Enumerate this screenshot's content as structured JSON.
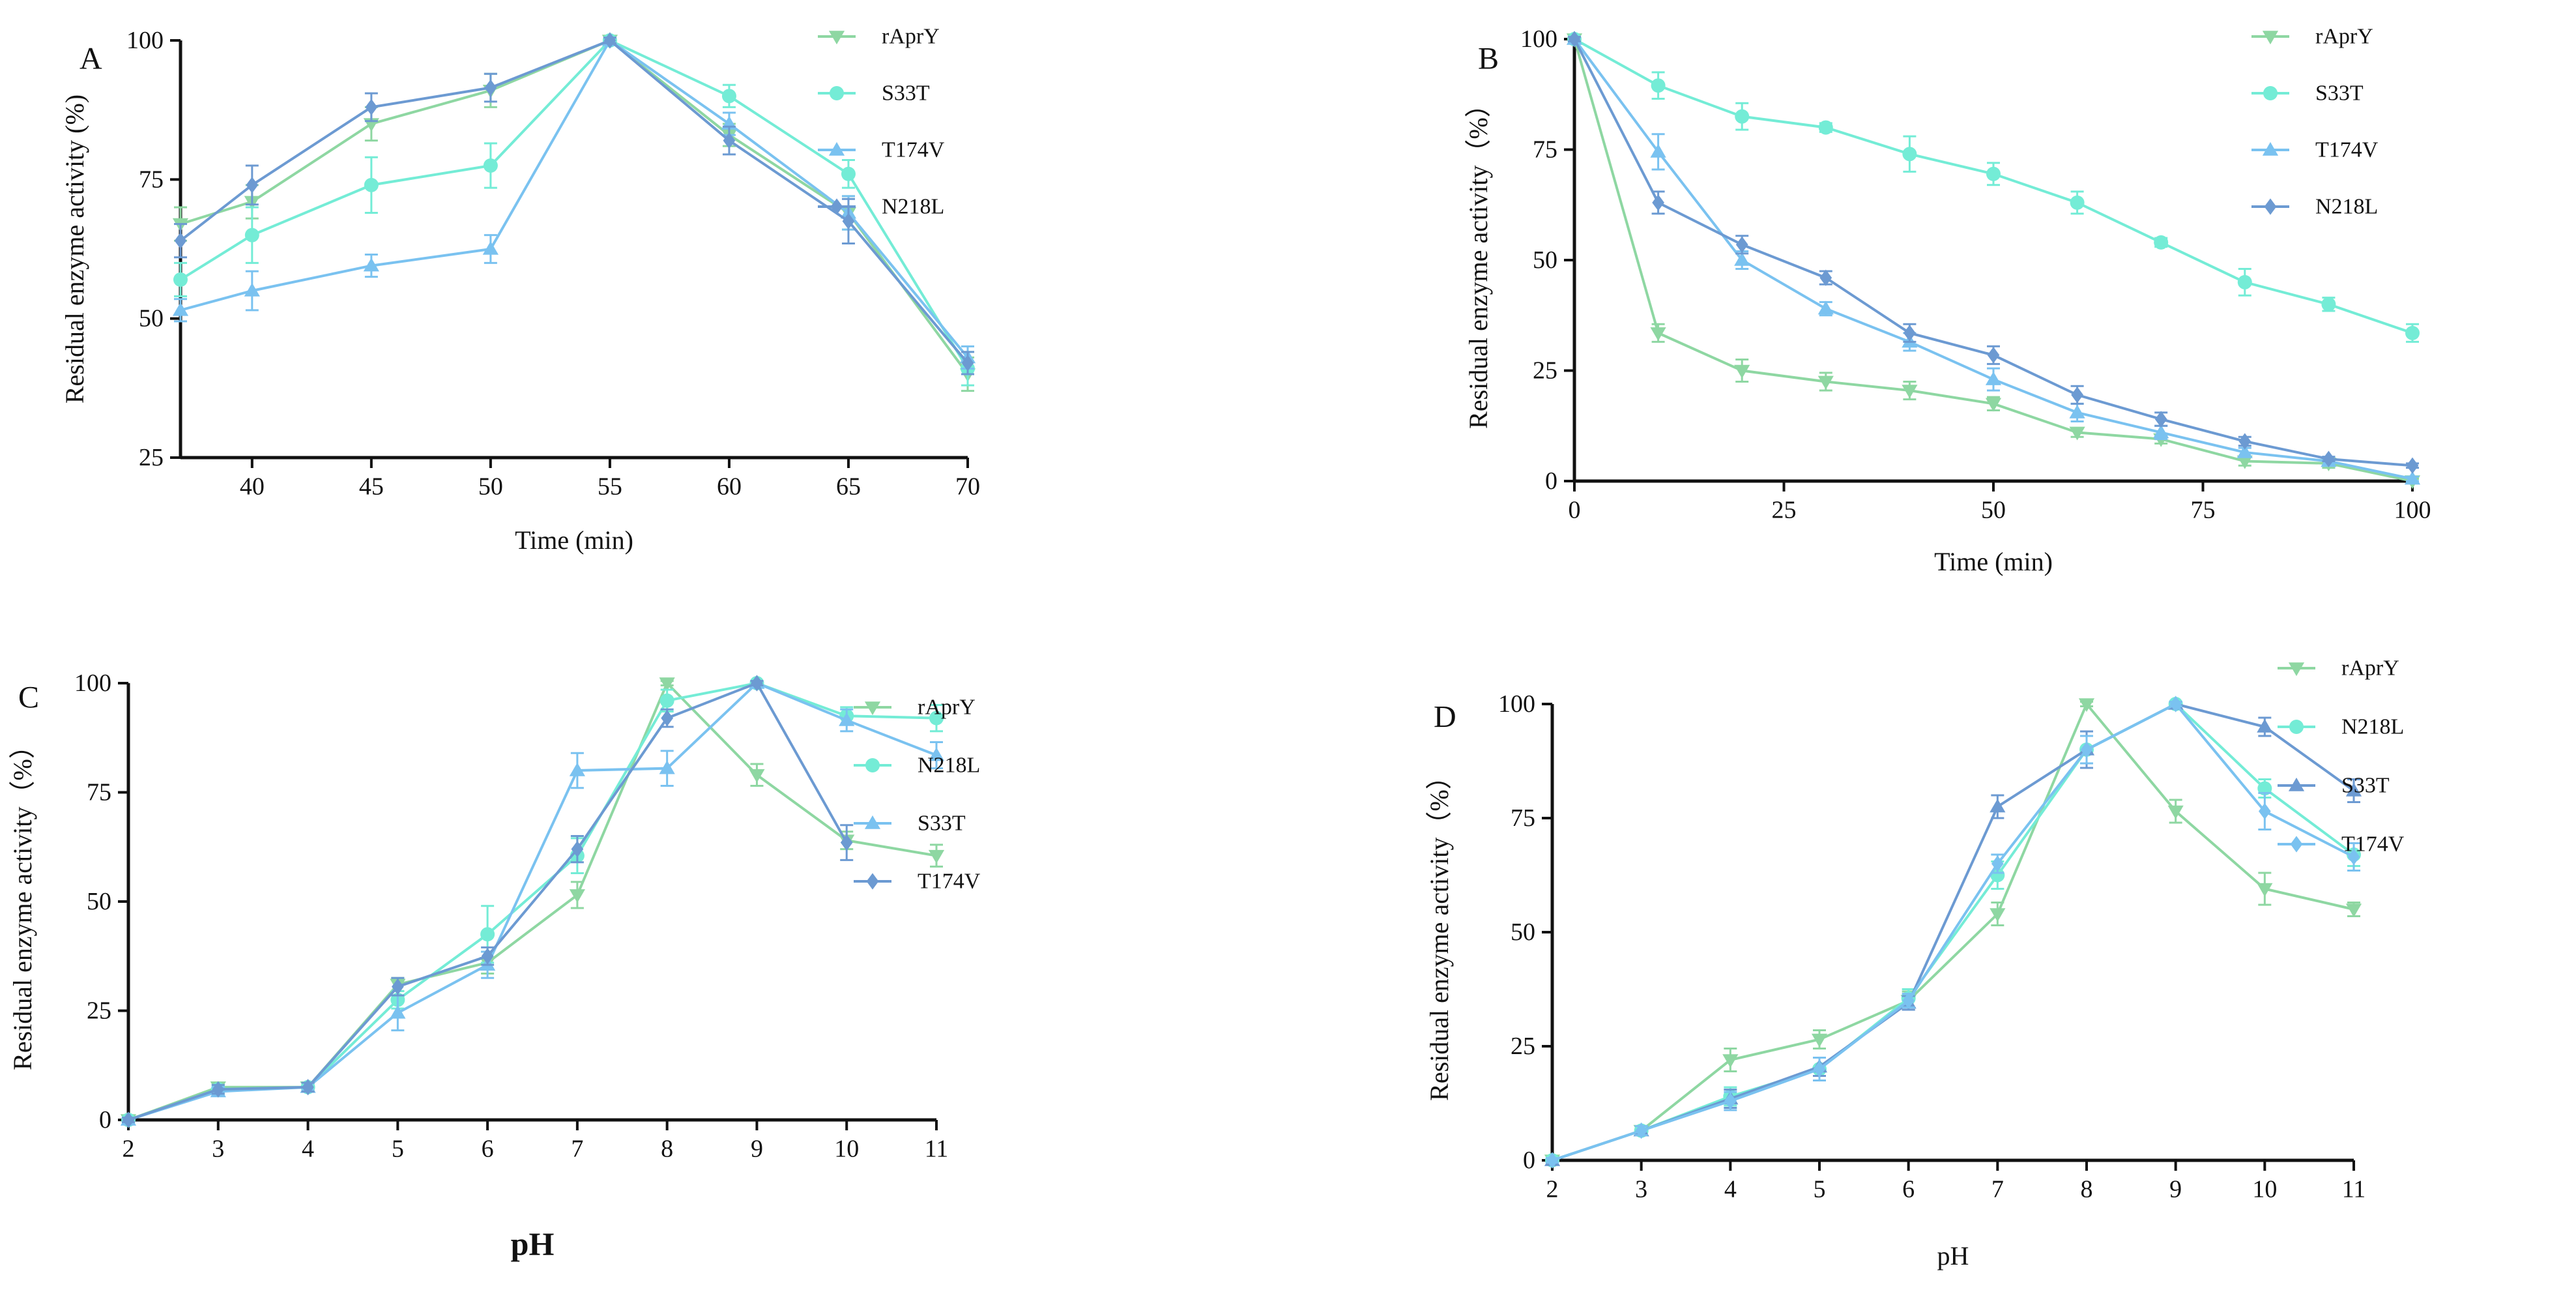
{
  "colors": {
    "rAprY": "#8ed7a2",
    "S33T": "#74ecd6",
    "T174V": "#7ac2f0",
    "N218L": "#6c9ad2",
    "axis": "#111111"
  },
  "chart_data": [
    {
      "panel": "A",
      "type": "line",
      "title": "",
      "xlabel": "Time (min)",
      "ylabel": "Residual enzyme activity (%)",
      "xlim": [
        37,
        70
      ],
      "ylim": [
        25,
        100
      ],
      "xticks": [
        40,
        45,
        50,
        55,
        60,
        65,
        70
      ],
      "yticks": [
        25,
        50,
        75,
        100
      ],
      "grid": false,
      "legend_position": "top-right",
      "series": [
        {
          "name": "rAprY",
          "key": "rAprY",
          "marker": "triangle-down",
          "x": [
            37,
            40,
            45,
            50,
            55,
            60,
            65,
            70
          ],
          "values": [
            67,
            71,
            85,
            91,
            100,
            83,
            69,
            40
          ],
          "errors": [
            3,
            3,
            3,
            3,
            0.5,
            2,
            3,
            3
          ]
        },
        {
          "name": "S33T",
          "key": "S33T",
          "marker": "circle",
          "x": [
            37,
            40,
            45,
            50,
            55,
            60,
            65,
            70
          ],
          "values": [
            57,
            65,
            74,
            77.5,
            100,
            90,
            76,
            41
          ],
          "errors": [
            3,
            5,
            5,
            4,
            0.5,
            2,
            2.5,
            3
          ]
        },
        {
          "name": "T174V",
          "key": "T174V",
          "marker": "triangle-up",
          "x": [
            37,
            40,
            45,
            50,
            55,
            60,
            65,
            70
          ],
          "values": [
            51.5,
            55,
            59.5,
            62.5,
            100,
            85,
            69,
            43
          ],
          "errors": [
            2,
            3.5,
            2,
            2.5,
            0.5,
            2,
            3,
            2
          ]
        },
        {
          "name": "N218L",
          "key": "N218L",
          "marker": "diamond",
          "x": [
            37,
            40,
            45,
            50,
            55,
            60,
            65,
            70
          ],
          "values": [
            64,
            74,
            88,
            91.5,
            100,
            82,
            67.5,
            42
          ],
          "errors": [
            3,
            3.5,
            2.5,
            2.5,
            0.5,
            2.5,
            4,
            2
          ]
        }
      ]
    },
    {
      "panel": "B",
      "type": "line",
      "title": "",
      "xlabel": "Time (min)",
      "ylabel": "Residual enzyme activity（%）",
      "xlim": [
        0,
        100
      ],
      "ylim": [
        0,
        100
      ],
      "xticks": [
        0,
        25,
        50,
        75,
        100
      ],
      "yticks": [
        0,
        25,
        50,
        75,
        100
      ],
      "grid": false,
      "legend_position": "top-right",
      "series": [
        {
          "name": "rAprY",
          "key": "rAprY",
          "marker": "triangle-down",
          "x": [
            0,
            10,
            20,
            30,
            40,
            50,
            60,
            70,
            80,
            90,
            100
          ],
          "values": [
            100,
            33.5,
            25,
            22.5,
            20.5,
            17.5,
            11,
            9.5,
            4.5,
            4,
            0
          ],
          "errors": [
            0.5,
            2,
            2.5,
            2,
            2,
            1.5,
            1,
            1,
            1,
            1,
            0.5
          ]
        },
        {
          "name": "S33T",
          "key": "S33T",
          "marker": "circle",
          "x": [
            0,
            10,
            20,
            30,
            40,
            50,
            60,
            70,
            80,
            90,
            100
          ],
          "values": [
            100,
            89.5,
            82.5,
            80,
            74,
            69.5,
            63,
            54,
            45,
            40,
            33.5
          ],
          "errors": [
            0.5,
            3,
            3,
            1,
            4,
            2.5,
            2.5,
            1,
            3,
            1.5,
            2
          ]
        },
        {
          "name": "T174V",
          "key": "T174V",
          "marker": "triangle-up",
          "x": [
            0,
            10,
            20,
            30,
            40,
            50,
            60,
            70,
            80,
            90,
            100
          ],
          "values": [
            100,
            74.5,
            50,
            39,
            31.5,
            23,
            15.5,
            11,
            6.5,
            4.5,
            0.5
          ],
          "errors": [
            0.5,
            4,
            2,
            1.5,
            2,
            2.5,
            2,
            1.5,
            1,
            1,
            0.5
          ]
        },
        {
          "name": "N218L",
          "key": "N218L",
          "marker": "diamond",
          "x": [
            0,
            10,
            20,
            30,
            40,
            50,
            60,
            70,
            80,
            90,
            100
          ],
          "values": [
            100,
            63,
            53.5,
            46,
            33.5,
            28.5,
            19.5,
            14,
            9,
            5,
            3.5
          ],
          "errors": [
            0.5,
            2.5,
            2,
            1.5,
            2,
            2,
            2,
            1.5,
            1,
            0.5,
            0.5
          ]
        }
      ]
    },
    {
      "panel": "C",
      "type": "line",
      "title": "",
      "xlabel": "pH",
      "xlabel_bold": true,
      "ylabel": "Residual enzyme activity（%）",
      "xlim": [
        2,
        11
      ],
      "ylim": [
        0,
        100
      ],
      "xticks": [
        2,
        3,
        4,
        5,
        6,
        7,
        8,
        9,
        10,
        11
      ],
      "yticks": [
        0,
        25,
        50,
        75,
        100
      ],
      "grid": false,
      "legend_position": "top-right",
      "series": [
        {
          "name": "rAprY",
          "key": "rAprY",
          "marker": "triangle-down",
          "x": [
            2,
            3,
            4,
            5,
            6,
            7,
            8,
            9,
            10,
            11
          ],
          "values": [
            0,
            7.5,
            7.5,
            31,
            36,
            51.5,
            100,
            79,
            64,
            60.5
          ],
          "errors": [
            0.5,
            1,
            1,
            1.5,
            2.5,
            3,
            0.5,
            2.5,
            2,
            2.5
          ]
        },
        {
          "name": "N218L",
          "key": "S33T",
          "marker": "circle",
          "x": [
            2,
            3,
            4,
            5,
            6,
            7,
            8,
            9,
            10,
            11
          ],
          "values": [
            0,
            7,
            7.5,
            27.5,
            42.5,
            60.5,
            96,
            100,
            92.5,
            92
          ],
          "errors": [
            0.5,
            1,
            1,
            2,
            6.5,
            4,
            2.5,
            0.5,
            2,
            3
          ]
        },
        {
          "name": "S33T",
          "key": "T174V",
          "marker": "triangle-up",
          "x": [
            2,
            3,
            4,
            5,
            6,
            7,
            8,
            9,
            10,
            11
          ],
          "values": [
            0,
            6.5,
            7.5,
            24.5,
            35.5,
            80,
            80.5,
            100,
            91.5,
            83.5
          ],
          "errors": [
            0.5,
            1,
            1,
            4,
            3,
            4,
            4,
            0.5,
            2.5,
            3
          ]
        },
        {
          "name": "T174V",
          "key": "N218L",
          "marker": "diamond",
          "x": [
            2,
            3,
            4,
            5,
            6,
            7,
            8,
            9,
            10,
            11
          ],
          "values": [
            0,
            7,
            7.5,
            30.5,
            37.5,
            62,
            92,
            100,
            63.5,
            null
          ],
          "errors": [
            0.5,
            1,
            1,
            2,
            2,
            3,
            2,
            0.5,
            4,
            null
          ]
        }
      ]
    },
    {
      "panel": "D",
      "type": "line",
      "title": "",
      "xlabel": "pH",
      "ylabel": "Residual enzyme activity（%）",
      "xlim": [
        2,
        11
      ],
      "ylim": [
        0,
        100
      ],
      "xticks": [
        2,
        3,
        4,
        5,
        6,
        7,
        8,
        9,
        10,
        11
      ],
      "yticks": [
        0,
        25,
        50,
        75,
        100
      ],
      "grid": false,
      "legend_position": "top-right",
      "series": [
        {
          "name": "rAprY",
          "key": "rAprY",
          "marker": "triangle-down",
          "x": [
            2,
            3,
            4,
            5,
            6,
            7,
            8,
            9,
            10,
            11
          ],
          "values": [
            0,
            6.5,
            22,
            26.5,
            35,
            54,
            100,
            76.5,
            59.5,
            55
          ],
          "errors": [
            0.5,
            1,
            2.5,
            2,
            2,
            2.5,
            0.5,
            2.5,
            3.5,
            1.5
          ]
        },
        {
          "name": "N218L",
          "key": "S33T",
          "marker": "circle",
          "x": [
            2,
            3,
            4,
            5,
            6,
            7,
            8,
            9,
            10,
            11
          ],
          "values": [
            0,
            6.5,
            14,
            20,
            35.5,
            62.5,
            90,
            100,
            81.5,
            67
          ],
          "errors": [
            0.5,
            1,
            2,
            2.5,
            2,
            3,
            3,
            0.5,
            2,
            2.5
          ]
        },
        {
          "name": "S33T",
          "key": "N218L",
          "marker": "triangle-up",
          "x": [
            2,
            3,
            4,
            5,
            6,
            7,
            8,
            9,
            10,
            11
          ],
          "values": [
            0,
            6.5,
            13.5,
            20.5,
            34.5,
            77.5,
            90,
            100,
            95,
            81
          ],
          "errors": [
            0.5,
            1,
            2,
            2,
            1.5,
            2.5,
            4,
            0.5,
            2,
            2.5
          ]
        },
        {
          "name": "T174V",
          "key": "T174V",
          "marker": "diamond",
          "x": [
            2,
            3,
            4,
            5,
            6,
            7,
            8,
            9,
            10,
            11
          ],
          "values": [
            0,
            6.5,
            13,
            20,
            35,
            65,
            90,
            100,
            76.5,
            66.5
          ],
          "errors": [
            0.5,
            1,
            2,
            2.5,
            1.5,
            2,
            3,
            0.5,
            4,
            3
          ]
        }
      ]
    }
  ]
}
